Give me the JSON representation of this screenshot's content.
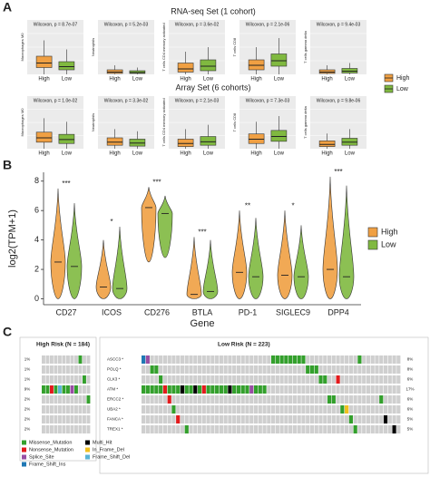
{
  "chart_data": [
    {
      "type": "box",
      "panel": "A",
      "title": "RNA-seq Set (1 cohort)",
      "series": [
        {
          "name": "High",
          "color": "#f0a043"
        },
        {
          "name": "Low",
          "color": "#80b940"
        }
      ],
      "ylim": [
        0,
        1
      ],
      "plots": [
        {
          "annotation": "Wilcoxon, p = 8.7e-07",
          "ylabel": "Macrophages M0",
          "categories": [
            "High",
            "Low"
          ],
          "boxes": [
            {
              "whisker_low": 0,
              "q1": 0.15,
              "median": 0.25,
              "q3": 0.4,
              "whisker_high": 0.75
            },
            {
              "whisker_low": 0,
              "q1": 0.1,
              "median": 0.17,
              "q3": 0.28,
              "whisker_high": 0.55
            }
          ]
        },
        {
          "annotation": "Wilcoxon, p = 5.2e-03",
          "ylabel": "Neutrophils",
          "categories": [
            "High",
            "Low"
          ],
          "boxes": [
            {
              "whisker_low": 0,
              "q1": 0.02,
              "median": 0.05,
              "q3": 0.1,
              "whisker_high": 0.2
            },
            {
              "whisker_low": 0,
              "q1": 0.02,
              "median": 0.04,
              "q3": 0.08,
              "whisker_high": 0.15
            }
          ]
        },
        {
          "annotation": "Wilcoxon, p = 3.6e-02",
          "ylabel": "T cells CD4 memory activated",
          "categories": [
            "High",
            "Low"
          ],
          "boxes": [
            {
              "whisker_low": 0,
              "q1": 0.05,
              "median": 0.12,
              "q3": 0.25,
              "whisker_high": 0.5
            },
            {
              "whisker_low": 0,
              "q1": 0.08,
              "median": 0.18,
              "q3": 0.32,
              "whisker_high": 0.6
            }
          ]
        },
        {
          "annotation": "Wilcoxon, p = 2.1e-06",
          "ylabel": "T cells CD8",
          "categories": [
            "High",
            "Low"
          ],
          "boxes": [
            {
              "whisker_low": 0,
              "q1": 0.1,
              "median": 0.2,
              "q3": 0.32,
              "whisker_high": 0.6
            },
            {
              "whisker_low": 0,
              "q1": 0.18,
              "median": 0.3,
              "q3": 0.45,
              "whisker_high": 0.8
            }
          ]
        },
        {
          "annotation": "Wilcoxon, p = 9.4e-03",
          "ylabel": "T cells gamma delta",
          "categories": [
            "High",
            "Low"
          ],
          "boxes": [
            {
              "whisker_low": 0,
              "q1": 0.02,
              "median": 0.05,
              "q3": 0.1,
              "whisker_high": 0.2
            },
            {
              "whisker_low": 0,
              "q1": 0.03,
              "median": 0.07,
              "q3": 0.13,
              "whisker_high": 0.25
            }
          ]
        }
      ]
    },
    {
      "type": "box",
      "title": "Array Set (6 cohorts)",
      "ylim": [
        0,
        1
      ],
      "plots": [
        {
          "annotation": "Wilcoxon, p = 1.0e-02",
          "ylabel": "Macrophages M0",
          "categories": [
            "High",
            "Low"
          ],
          "boxes": [
            {
              "whisker_low": 0,
              "q1": 0.15,
              "median": 0.25,
              "q3": 0.38,
              "whisker_high": 0.7
            },
            {
              "whisker_low": 0,
              "q1": 0.12,
              "median": 0.21,
              "q3": 0.33,
              "whisker_high": 0.62
            }
          ]
        },
        {
          "annotation": "Wilcoxon, p = 3.3e-02",
          "ylabel": "Neutrophils",
          "categories": [
            "High",
            "Low"
          ],
          "boxes": [
            {
              "whisker_low": 0,
              "q1": 0.08,
              "median": 0.15,
              "q3": 0.25,
              "whisker_high": 0.45
            },
            {
              "whisker_low": 0,
              "q1": 0.06,
              "median": 0.13,
              "q3": 0.22,
              "whisker_high": 0.4
            }
          ]
        },
        {
          "annotation": "Wilcoxon, p = 2.1e-03",
          "ylabel": "T cells CD4 memory activated",
          "categories": [
            "High",
            "Low"
          ],
          "boxes": [
            {
              "whisker_low": 0,
              "q1": 0.05,
              "median": 0.12,
              "q3": 0.22,
              "whisker_high": 0.45
            },
            {
              "whisker_low": 0,
              "q1": 0.08,
              "median": 0.16,
              "q3": 0.28,
              "whisker_high": 0.55
            }
          ]
        },
        {
          "annotation": "Wilcoxon, p = 7.3e-03",
          "ylabel": "T cells CD8",
          "categories": [
            "High",
            "Low"
          ],
          "boxes": [
            {
              "whisker_low": 0,
              "q1": 0.12,
              "median": 0.22,
              "q3": 0.34,
              "whisker_high": 0.62
            },
            {
              "whisker_low": 0,
              "q1": 0.17,
              "median": 0.28,
              "q3": 0.42,
              "whisker_high": 0.75
            }
          ]
        },
        {
          "annotation": "Wilcoxon, p = 9.8e-06",
          "ylabel": "T cells gamma delta",
          "categories": [
            "High",
            "Low"
          ],
          "boxes": [
            {
              "whisker_low": 0,
              "q1": 0.05,
              "median": 0.1,
              "q3": 0.18,
              "whisker_high": 0.35
            },
            {
              "whisker_low": 0,
              "q1": 0.08,
              "median": 0.15,
              "q3": 0.24,
              "whisker_high": 0.45
            }
          ]
        }
      ]
    },
    {
      "type": "violin",
      "panel": "B",
      "ylabel": "log2(TPM+1)",
      "xlabel": "Gene",
      "categories": [
        "CD27",
        "ICOS",
        "CD276",
        "BTLA",
        "PD-1",
        "SIGLEC9",
        "DPP4"
      ],
      "significance": [
        "***",
        "*",
        "***",
        "***",
        "**",
        "*",
        "***"
      ],
      "ylim": [
        -0.4,
        8.6
      ],
      "yticks": [
        0,
        2,
        4,
        6,
        8
      ],
      "series": [
        {
          "name": "High",
          "color": "#f0a043",
          "values": [
            2.5,
            0.8,
            6.2,
            0.3,
            1.8,
            1.6,
            2.0
          ],
          "min": [
            0,
            0,
            2.5,
            0,
            0,
            0,
            0
          ],
          "max": [
            7.5,
            4.0,
            7.6,
            4.2,
            6.0,
            6.0,
            8.3
          ]
        },
        {
          "name": "Low",
          "color": "#80b940",
          "values": [
            2.2,
            0.7,
            5.8,
            0.5,
            1.5,
            1.5,
            1.5
          ],
          "min": [
            0,
            0,
            2.8,
            0,
            0,
            0,
            0
          ],
          "max": [
            6.5,
            4.9,
            7.0,
            4.0,
            5.5,
            5.0,
            7.7
          ]
        }
      ]
    },
    {
      "type": "oncoprint",
      "panel": "C",
      "genes": [
        "ASCC3 *",
        "POLQ *",
        "CLK3 *",
        "ATM *",
        "ERCC2 *",
        "UBA2 *",
        "FANCA *",
        "TREX1 *"
      ],
      "legend": [
        {
          "name": "Missense_Mutation",
          "color": "#33a02c"
        },
        {
          "name": "Nonsense_Mutation",
          "color": "#e31a1c"
        },
        {
          "name": "Splice_Site",
          "color": "#984ea3"
        },
        {
          "name": "Frame_Shift_Ins",
          "color": "#1f78b4"
        },
        {
          "name": "Multi_Hit",
          "color": "#000000"
        },
        {
          "name": "In_Frame_Del",
          "color": "#f0c020"
        },
        {
          "name": "Frame_Shift_Del",
          "color": "#5ab4d6"
        }
      ],
      "groups": [
        {
          "title": "High Risk (N = 184)",
          "frequencies": [
            "1%",
            "1%",
            "1%",
            "9%",
            "2%",
            "2%",
            "2%",
            "2%"
          ],
          "mutations": [
            [
              "ASCC3 *",
              9,
              "Missense_Mutation"
            ],
            [
              "CLK3 *",
              10,
              "Missense_Mutation"
            ],
            [
              "ERCC2 *",
              11,
              "Missense_Mutation"
            ],
            [
              "ATM *",
              0,
              "Missense_Mutation"
            ],
            [
              "ATM *",
              1,
              "Missense_Mutation"
            ],
            [
              "ATM *",
              2,
              "Nonsense_Mutation"
            ],
            [
              "ATM *",
              3,
              "Missense_Mutation"
            ],
            [
              "ATM *",
              4,
              "Frame_Shift_Del"
            ],
            [
              "ATM *",
              5,
              "Missense_Mutation"
            ],
            [
              "ATM *",
              6,
              "Missense_Mutation"
            ],
            [
              "ATM *",
              7,
              "Splice_Site"
            ],
            [
              "ATM *",
              8,
              "Missense_Mutation"
            ]
          ]
        },
        {
          "title": "Low Risk (N = 223)",
          "frequencies": [
            "8%",
            "8%",
            "6%",
            "17%",
            "6%",
            "6%",
            "5%",
            "5%"
          ],
          "mutations": [
            [
              "ASCC3 *",
              0,
              "Frame_Shift_Ins"
            ],
            [
              "ASCC3 *",
              1,
              "Splice_Site"
            ],
            [
              "ASCC3 *",
              30,
              "Missense_Mutation"
            ],
            [
              "ASCC3 *",
              31,
              "Missense_Mutation"
            ],
            [
              "ASCC3 *",
              32,
              "Missense_Mutation"
            ],
            [
              "ASCC3 *",
              33,
              "Missense_Mutation"
            ],
            [
              "ASCC3 *",
              34,
              "Missense_Mutation"
            ],
            [
              "ASCC3 *",
              35,
              "Missense_Mutation"
            ],
            [
              "ASCC3 *",
              36,
              "Missense_Mutation"
            ],
            [
              "ASCC3 *",
              37,
              "Missense_Mutation"
            ],
            [
              "ASCC3 *",
              50,
              "Missense_Mutation"
            ],
            [
              "POLQ *",
              2,
              "Missense_Mutation"
            ],
            [
              "POLQ *",
              3,
              "Missense_Mutation"
            ],
            [
              "POLQ *",
              38,
              "Missense_Mutation"
            ],
            [
              "POLQ *",
              39,
              "Missense_Mutation"
            ],
            [
              "POLQ *",
              40,
              "Missense_Mutation"
            ],
            [
              "CLK3 *",
              4,
              "Missense_Mutation"
            ],
            [
              "CLK3 *",
              41,
              "Missense_Mutation"
            ],
            [
              "CLK3 *",
              42,
              "Missense_Mutation"
            ],
            [
              "CLK3 *",
              45,
              "Nonsense_Mutation"
            ],
            [
              "ATM *",
              0,
              "Missense_Mutation"
            ],
            [
              "ATM *",
              1,
              "Missense_Mutation"
            ],
            [
              "ATM *",
              2,
              "Missense_Mutation"
            ],
            [
              "ATM *",
              3,
              "Missense_Mutation"
            ],
            [
              "ATM *",
              4,
              "Missense_Mutation"
            ],
            [
              "ATM *",
              5,
              "Nonsense_Mutation"
            ],
            [
              "ATM *",
              6,
              "Missense_Mutation"
            ],
            [
              "ATM *",
              7,
              "Missense_Mutation"
            ],
            [
              "ATM *",
              8,
              "Missense_Mutation"
            ],
            [
              "ATM *",
              9,
              "Multi_Hit"
            ],
            [
              "ATM *",
              10,
              "Missense_Mutation"
            ],
            [
              "ATM *",
              11,
              "Missense_Mutation"
            ],
            [
              "ATM *",
              12,
              "Multi_Hit"
            ],
            [
              "ATM *",
              13,
              "Missense_Mutation"
            ],
            [
              "ATM *",
              14,
              "Nonsense_Mutation"
            ],
            [
              "ATM *",
              15,
              "Missense_Mutation"
            ],
            [
              "ATM *",
              16,
              "Missense_Mutation"
            ],
            [
              "ATM *",
              17,
              "Missense_Mutation"
            ],
            [
              "ATM *",
              18,
              "Missense_Mutation"
            ],
            [
              "ATM *",
              19,
              "Missense_Mutation"
            ],
            [
              "ATM *",
              20,
              "Multi_Hit"
            ],
            [
              "ATM *",
              21,
              "Missense_Mutation"
            ],
            [
              "ATM *",
              22,
              "Missense_Mutation"
            ],
            [
              "ATM *",
              23,
              "Missense_Mutation"
            ],
            [
              "ATM *",
              24,
              "Missense_Mutation"
            ],
            [
              "ATM *",
              25,
              "Splice_Site"
            ],
            [
              "ATM *",
              26,
              "Missense_Mutation"
            ],
            [
              "ATM *",
              27,
              "Missense_Mutation"
            ],
            [
              "ATM *",
              28,
              "Missense_Mutation"
            ],
            [
              "ERCC2 *",
              6,
              "Nonsense_Mutation"
            ],
            [
              "ERCC2 *",
              43,
              "Missense_Mutation"
            ],
            [
              "ERCC2 *",
              44,
              "Missense_Mutation"
            ],
            [
              "ERCC2 *",
              55,
              "Missense_Mutation"
            ],
            [
              "UBA2 *",
              7,
              "Missense_Mutation"
            ],
            [
              "UBA2 *",
              46,
              "Missense_Mutation"
            ],
            [
              "UBA2 *",
              47,
              "In_Frame_Del"
            ],
            [
              "FANCA *",
              8,
              "Nonsense_Mutation"
            ],
            [
              "FANCA *",
              48,
              "Missense_Mutation"
            ],
            [
              "FANCA *",
              56,
              "Multi_Hit"
            ],
            [
              "TREX1 *",
              10,
              "Missense_Mutation"
            ],
            [
              "TREX1 *",
              49,
              "Missense_Mutation"
            ],
            [
              "TREX1 *",
              58,
              "Multi_Hit"
            ]
          ]
        }
      ]
    }
  ]
}
